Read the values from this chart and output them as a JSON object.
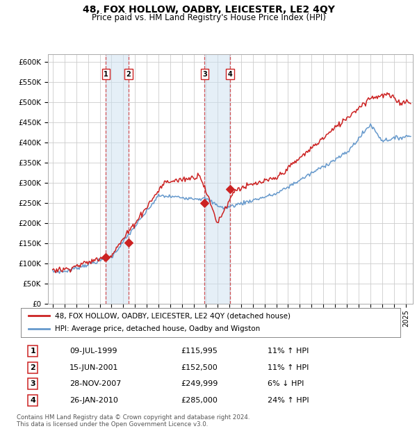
{
  "title": "48, FOX HOLLOW, OADBY, LEICESTER, LE2 4QY",
  "subtitle": "Price paid vs. HM Land Registry's House Price Index (HPI)",
  "title_fontsize": 10,
  "subtitle_fontsize": 8.5,
  "ylim": [
    0,
    620000
  ],
  "yticks": [
    0,
    50000,
    100000,
    150000,
    200000,
    250000,
    300000,
    350000,
    400000,
    450000,
    500000,
    550000,
    600000
  ],
  "ytick_labels": [
    "£0",
    "£50K",
    "£100K",
    "£150K",
    "£200K",
    "£250K",
    "£300K",
    "£350K",
    "£400K",
    "£450K",
    "£500K",
    "£550K",
    "£600K"
  ],
  "xlim_start": 1994.6,
  "xlim_end": 2025.6,
  "sales": [
    {
      "label": 1,
      "date_str": "09-JUL-1999",
      "date_x": 1999.52,
      "price": 115995,
      "pct": "11%",
      "dir": "↑"
    },
    {
      "label": 2,
      "date_str": "15-JUN-2001",
      "date_x": 2001.45,
      "price": 152500,
      "pct": "11%",
      "dir": "↑"
    },
    {
      "label": 3,
      "date_str": "28-NOV-2007",
      "date_x": 2007.91,
      "price": 249999,
      "pct": "6%",
      "dir": "↓"
    },
    {
      "label": 4,
      "date_str": "26-JAN-2010",
      "date_x": 2010.07,
      "price": 285000,
      "pct": "24%",
      "dir": "↑"
    }
  ],
  "legend_line1": "48, FOX HOLLOW, OADBY, LEICESTER, LE2 4QY (detached house)",
  "legend_line2": "HPI: Average price, detached house, Oadby and Wigston",
  "footer1": "Contains HM Land Registry data © Crown copyright and database right 2024.",
  "footer2": "This data is licensed under the Open Government Licence v3.0.",
  "hpi_color": "#6699cc",
  "price_color": "#cc2222",
  "bg_color": "#ffffff",
  "grid_color": "#cccccc",
  "shade_color": "#cce0f0"
}
